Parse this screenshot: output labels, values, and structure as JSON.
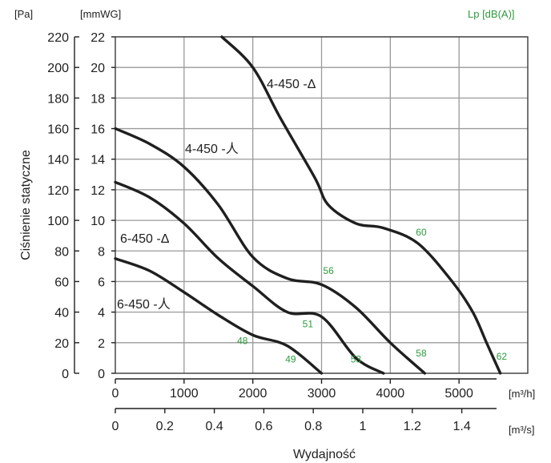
{
  "chart_data": {
    "type": "line",
    "units": {
      "pa": "[Pa]",
      "mmwg": "[mmWG]",
      "lp": "Lp [dB(A)]",
      "m3h": "[m³/h]",
      "m3s": "[m³/s]"
    },
    "ylabel": "Ciśnienie statyczne",
    "xlabel": "Wydajność",
    "y_pa": {
      "range": [
        0,
        220
      ],
      "ticks": [
        0,
        20,
        40,
        60,
        80,
        100,
        120,
        140,
        160,
        180,
        200,
        220
      ]
    },
    "y_mmwg": {
      "range": [
        0,
        22
      ],
      "ticks": [
        0,
        2,
        4,
        6,
        8,
        10,
        12,
        14,
        16,
        18,
        20,
        22
      ]
    },
    "x_m3h": {
      "range": [
        0,
        6000
      ],
      "ticks": [
        0,
        1000,
        2000,
        3000,
        4000,
        5000
      ]
    },
    "x_m3s": {
      "ticks": [
        "0",
        "0.2",
        "0.4",
        "0.6",
        "0.8",
        "1",
        "1.2",
        "1.4"
      ],
      "values": [
        0,
        0.2,
        0.4,
        0.6,
        0.8,
        1.0,
        1.2,
        1.4
      ]
    },
    "grid": true,
    "series": [
      {
        "name": "4-450 -Δ",
        "x": [
          1550,
          2000,
          2400,
          2900,
          3100,
          3500,
          3900,
          4400,
          4900,
          5200,
          5400,
          5600
        ],
        "y": [
          220,
          200,
          167,
          128,
          110,
          98,
          95,
          85,
          60,
          40,
          20,
          0
        ],
        "sound_labels": [
          {
            "x": 4450,
            "y": 90,
            "text": "60"
          },
          {
            "x": 5620,
            "y": 9,
            "text": "62"
          }
        ]
      },
      {
        "name": "4-450 -人",
        "x": [
          0,
          500,
          1000,
          1500,
          2000,
          2500,
          3000,
          3500,
          4000,
          4500
        ],
        "y": [
          160,
          150,
          135,
          110,
          76,
          62,
          58,
          43,
          20,
          0
        ],
        "sound_labels": [
          {
            "x": 3100,
            "y": 65,
            "text": "56"
          },
          {
            "x": 4450,
            "y": 11,
            "text": "58"
          }
        ]
      },
      {
        "name": "6-450 -Δ",
        "x": [
          0,
          500,
          1000,
          1500,
          2000,
          2500,
          3000,
          3500,
          3900
        ],
        "y": [
          125,
          115,
          98,
          75,
          57,
          40,
          37,
          10,
          0
        ],
        "sound_labels": [
          {
            "x": 2800,
            "y": 30,
            "text": "51"
          },
          {
            "x": 3500,
            "y": 7,
            "text": "53"
          }
        ]
      },
      {
        "name": "6-450 -人",
        "x": [
          0,
          500,
          1000,
          1500,
          2000,
          2500,
          3000
        ],
        "y": [
          75,
          67,
          53,
          38,
          25,
          18,
          0
        ],
        "sound_labels": [
          {
            "x": 1850,
            "y": 19,
            "text": "48"
          },
          {
            "x": 2550,
            "y": 7,
            "text": "49"
          }
        ]
      }
    ]
  }
}
